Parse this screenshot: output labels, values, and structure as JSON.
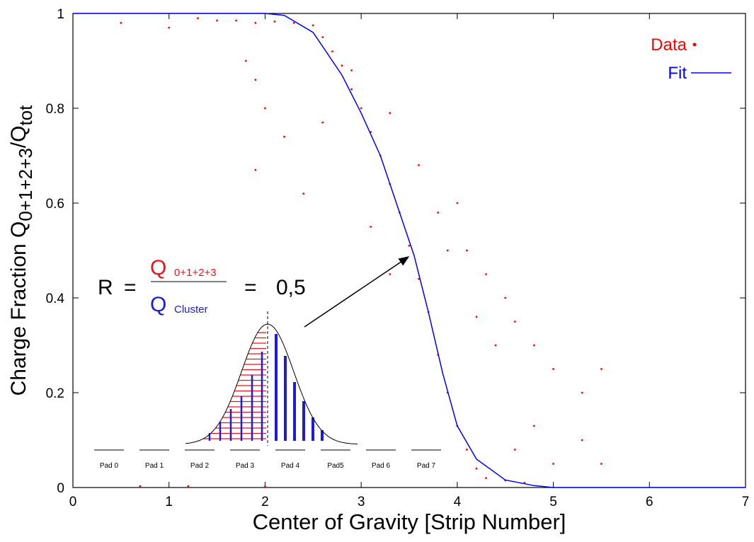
{
  "chart_data": {
    "type": "scatter",
    "x_label": "Center of Gravity [Strip Number]",
    "y_label": {
      "text": "Charge Fraction Q",
      "sub": "0+1+2+3",
      "mid": "/Q",
      "sub2": "tot"
    },
    "xlim": [
      0,
      7
    ],
    "xticks": [
      0,
      1,
      2,
      3,
      4,
      5,
      6,
      7
    ],
    "ylim": [
      0,
      1
    ],
    "yticks": [
      0,
      0.2,
      0.4,
      0.6,
      0.8,
      1
    ],
    "legend": "top-right",
    "series": [
      {
        "name": "Data",
        "type": "scatter",
        "color": "#ff0000",
        "x": [
          1.5,
          1.7,
          1.9,
          2.1,
          2.3,
          2.5,
          2.6,
          2.7,
          2.8,
          2.9,
          3.0,
          3.1,
          3.2,
          3.3,
          3.4,
          3.5,
          3.6,
          3.7,
          3.8,
          3.9,
          4.0,
          4.1,
          4.2,
          4.3,
          4.5,
          4.7,
          0.5,
          1.0,
          1.3,
          1.8,
          1.9,
          2.0,
          2.2,
          1.9,
          2.4,
          2.6,
          2.9,
          3.3,
          3.6,
          3.8,
          3.9,
          4.1,
          4.3,
          4.5,
          4.6,
          4.8,
          5.0,
          5.3,
          5.5,
          5.3,
          5.5,
          5.0,
          4.8,
          4.4,
          4.2,
          0.7,
          1.2,
          2.0,
          4.6,
          3.3,
          4.0,
          3.1
        ],
        "values": [
          0.985,
          0.985,
          0.98,
          0.983,
          0.98,
          0.975,
          0.95,
          0.92,
          0.89,
          0.84,
          0.8,
          0.75,
          0.7,
          0.64,
          0.58,
          0.51,
          0.44,
          0.37,
          0.28,
          0.2,
          0.13,
          0.08,
          0.04,
          0.02,
          0.015,
          0.01,
          0.98,
          0.97,
          0.99,
          0.9,
          0.86,
          0.8,
          0.74,
          0.67,
          0.62,
          0.77,
          0.88,
          0.79,
          0.68,
          0.58,
          0.5,
          0.5,
          0.45,
          0.4,
          0.35,
          0.3,
          0.25,
          0.2,
          0.25,
          0.1,
          0.05,
          0.05,
          0.13,
          0.3,
          0.36,
          0.003,
          0.003,
          0.002,
          0.08,
          0.45,
          0.6,
          0.55
        ]
      },
      {
        "name": "Fit",
        "type": "line",
        "color": "#0000ff",
        "x": [
          0,
          1,
          2,
          2.2,
          2.5,
          2.8,
          3.0,
          3.2,
          3.4,
          3.55,
          3.7,
          3.85,
          4.0,
          4.2,
          4.5,
          4.8,
          5,
          6,
          7
        ],
        "values": [
          1,
          1,
          1,
          0.996,
          0.96,
          0.87,
          0.79,
          0.7,
          0.58,
          0.49,
          0.37,
          0.24,
          0.13,
          0.06,
          0.016,
          0.004,
          0,
          0,
          0
        ]
      }
    ],
    "annotation": {
      "lhs": "R",
      "eq": "=",
      "num_symbol": "Q",
      "num_sub": "0+1+2+3",
      "den_symbol": "Q",
      "den_sub": "Cluster",
      "eq2": "=",
      "result": "0,5"
    },
    "pads": [
      "Pad 0",
      "Pad 1",
      "Pad 2",
      "Pad 3",
      "Pad 4",
      "Pad5",
      "Pad 6",
      "Pad 7"
    ]
  }
}
